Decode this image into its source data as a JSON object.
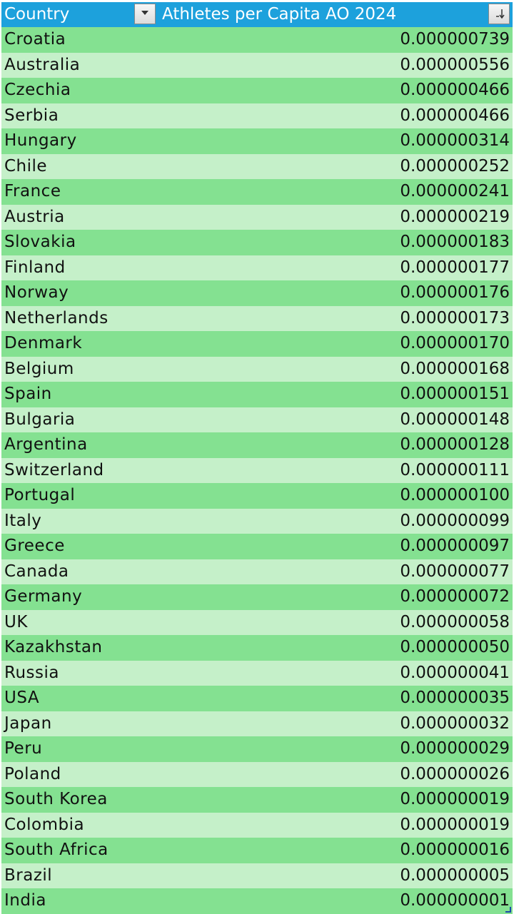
{
  "table": {
    "headers": {
      "country": "Country",
      "value": "Athletes per Capita AO 2024"
    },
    "rows": [
      {
        "country": "Croatia",
        "value": "0.000000739"
      },
      {
        "country": "Australia",
        "value": "0.000000556"
      },
      {
        "country": "Czechia",
        "value": "0.000000466"
      },
      {
        "country": "Serbia",
        "value": "0.000000466"
      },
      {
        "country": "Hungary",
        "value": "0.000000314"
      },
      {
        "country": "Chile",
        "value": "0.000000252"
      },
      {
        "country": "France",
        "value": "0.000000241"
      },
      {
        "country": "Austria",
        "value": "0.000000219"
      },
      {
        "country": "Slovakia",
        "value": "0.000000183"
      },
      {
        "country": "Finland",
        "value": "0.000000177"
      },
      {
        "country": "Norway",
        "value": "0.000000176"
      },
      {
        "country": "Netherlands",
        "value": "0.000000173"
      },
      {
        "country": "Denmark",
        "value": "0.000000170"
      },
      {
        "country": "Belgium",
        "value": "0.000000168"
      },
      {
        "country": "Spain",
        "value": "0.000000151"
      },
      {
        "country": "Bulgaria",
        "value": "0.000000148"
      },
      {
        "country": "Argentina",
        "value": "0.000000128"
      },
      {
        "country": "Switzerland",
        "value": "0.000000111"
      },
      {
        "country": "Portugal",
        "value": "0.000000100"
      },
      {
        "country": "Italy",
        "value": "0.000000099"
      },
      {
        "country": "Greece",
        "value": "0.000000097"
      },
      {
        "country": "Canada",
        "value": "0.000000077"
      },
      {
        "country": "Germany",
        "value": "0.000000072"
      },
      {
        "country": "UK",
        "value": "0.000000058"
      },
      {
        "country": "Kazakhstan",
        "value": "0.000000050"
      },
      {
        "country": "Russia",
        "value": "0.000000041"
      },
      {
        "country": "USA",
        "value": "0.000000035"
      },
      {
        "country": "Japan",
        "value": "0.000000032"
      },
      {
        "country": "Peru",
        "value": "0.000000029"
      },
      {
        "country": "Poland",
        "value": "0.000000026"
      },
      {
        "country": "South Korea",
        "value": "0.000000019"
      },
      {
        "country": "Colombia",
        "value": "0.000000019"
      },
      {
        "country": "South Africa",
        "value": "0.000000016"
      },
      {
        "country": "Brazil",
        "value": "0.000000005"
      },
      {
        "country": "India",
        "value": "0.000000001"
      }
    ],
    "colors": {
      "header_bg": "#1da1dc",
      "row_odd": "#84e191",
      "row_even": "#c5f0c9"
    },
    "icons": {
      "country_filter": "dropdown-arrow-icon",
      "value_filter": "sort-descending-icon"
    }
  }
}
